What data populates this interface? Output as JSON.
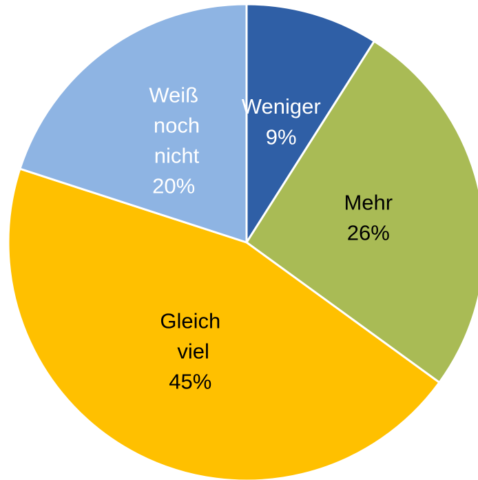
{
  "chart_data": {
    "type": "pie",
    "categories": [
      "Weniger",
      "Mehr",
      "Gleich viel",
      "Weiß noch nicht"
    ],
    "values": [
      9,
      26,
      45,
      20
    ],
    "value_labels": [
      "9%",
      "26%",
      "45%",
      "20%"
    ],
    "colors": [
      "#2f5fa6",
      "#a9bb55",
      "#ffc000",
      "#8eb4e3"
    ],
    "label_colors": [
      "#ffffff",
      "#000000",
      "#000000",
      "#ffffff"
    ]
  }
}
